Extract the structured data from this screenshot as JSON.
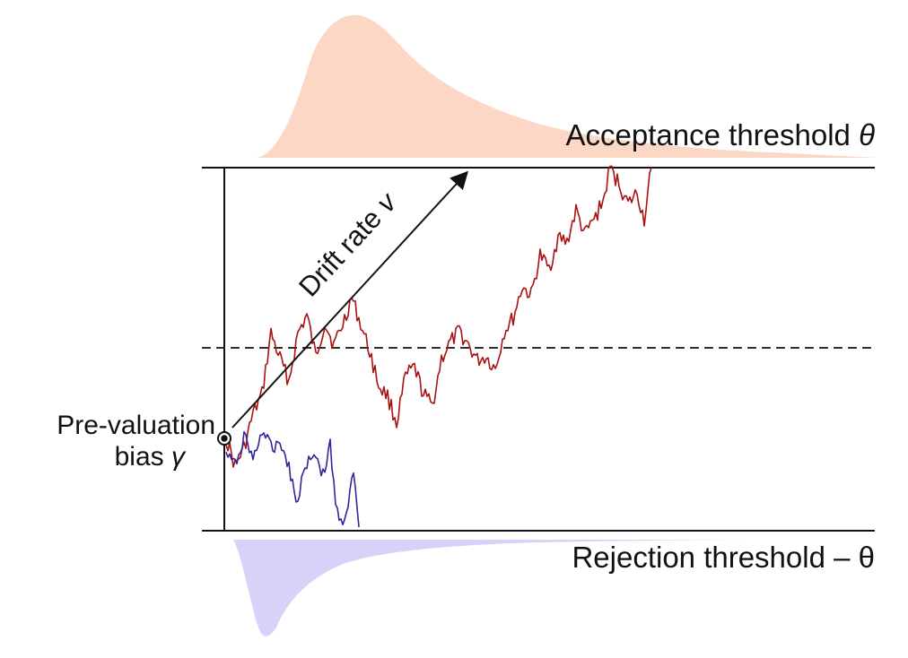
{
  "labels": {
    "acceptance": "Acceptance threshold",
    "acceptance_symbol": "θ",
    "rejection": "Rejection threshold",
    "rejection_symbol": "– θ",
    "drift": "Drift rate",
    "drift_symbol": "v",
    "bias_line1": "Pre-valuation",
    "bias_line2": "bias",
    "bias_symbol": "γ"
  },
  "colors": {
    "acceptance_distribution": "#fcd7c6",
    "rejection_distribution": "#d9d2f8",
    "accept_path": "#aa1111",
    "reject_path": "#33249a",
    "axis": "#111111"
  }
}
